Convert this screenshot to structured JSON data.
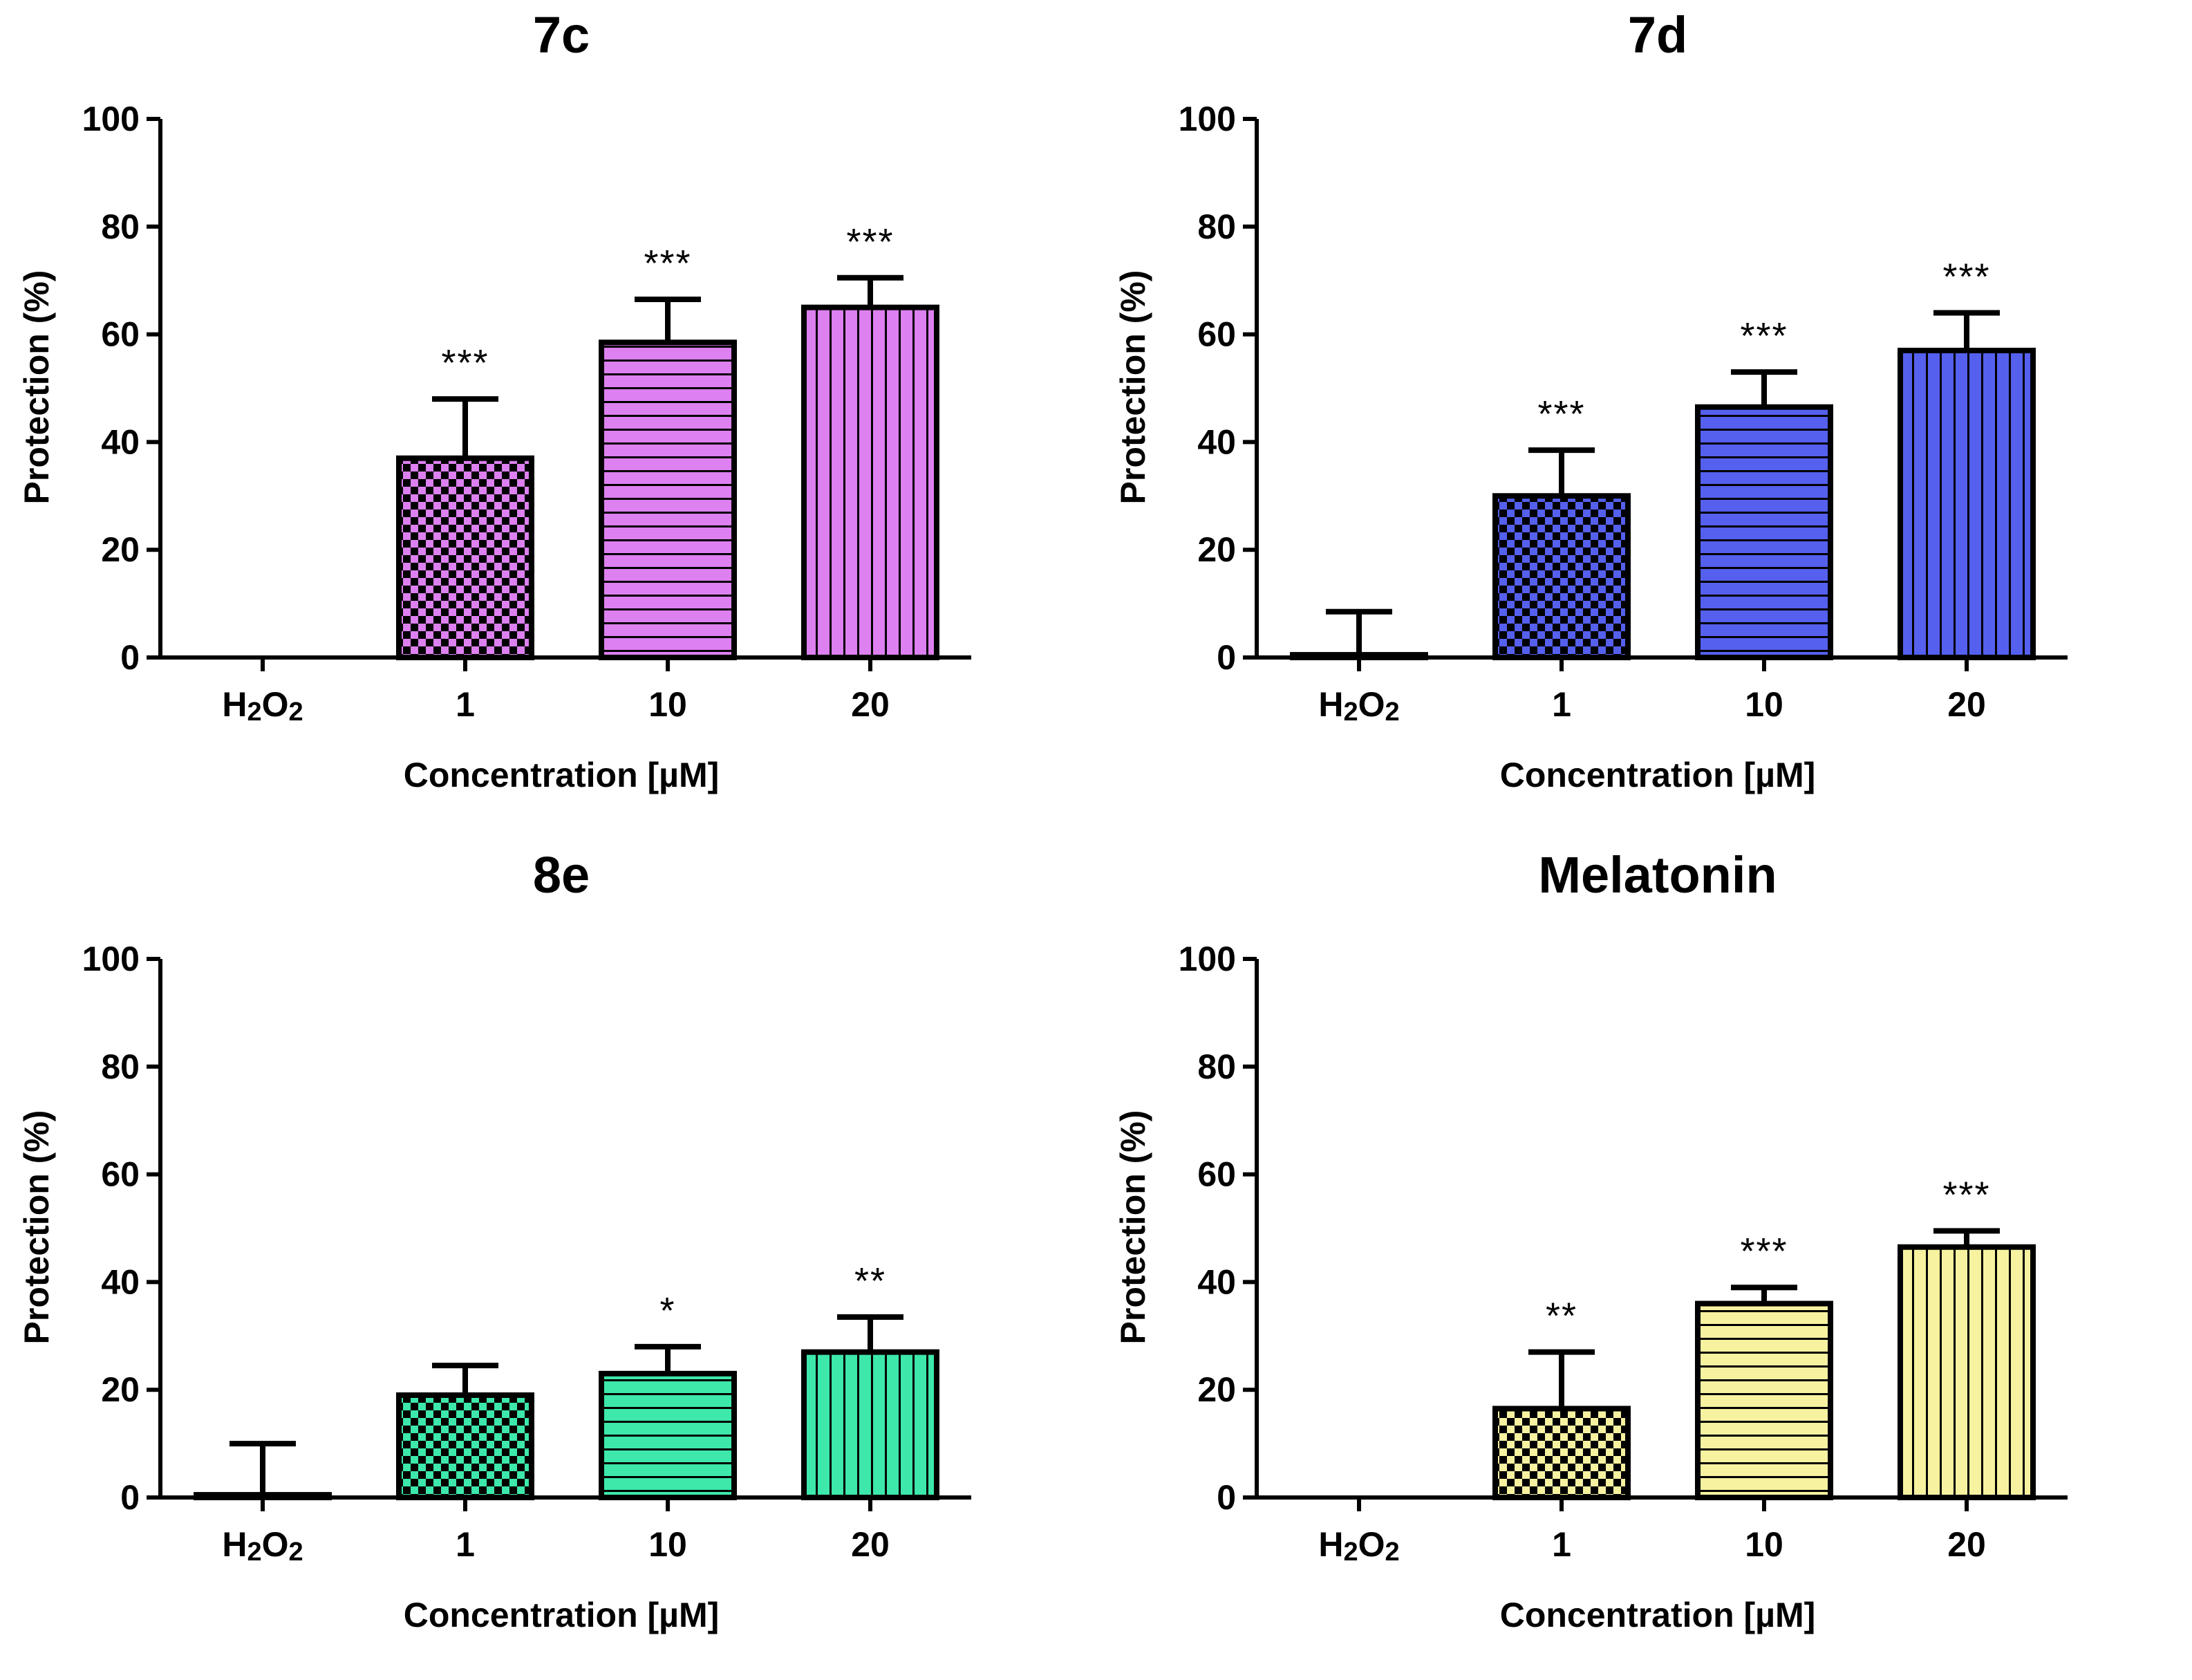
{
  "chart_data": [
    {
      "type": "bar",
      "title": "7c",
      "categories": [
        "H2O2",
        "1",
        "10",
        "20"
      ],
      "values": [
        0,
        37,
        58.5,
        65
      ],
      "errors": [
        0,
        11,
        8,
        5.5
      ],
      "significance": [
        "",
        "***",
        "***",
        "***"
      ],
      "patterns": [
        "none",
        "checker",
        "horizontal",
        "vertical"
      ],
      "color": "#dd80f0",
      "xlabel": "Concentration [µM]",
      "ylabel": "Protection (%)",
      "ylim": [
        0,
        100
      ],
      "yticks": [
        0,
        20,
        40,
        60,
        80,
        100
      ]
    },
    {
      "type": "bar",
      "title": "7d",
      "categories": [
        "H2O2",
        "1",
        "10",
        "20"
      ],
      "values": [
        0.5,
        30,
        46.5,
        57
      ],
      "errors": [
        8,
        8.5,
        6.5,
        7
      ],
      "significance": [
        "",
        "***",
        "***",
        "***"
      ],
      "patterns": [
        "solid",
        "checker",
        "horizontal",
        "vertical"
      ],
      "color": "#5560ee",
      "xlabel": "Concentration [µM]",
      "ylabel": "Protection (%)",
      "ylim": [
        0,
        100
      ],
      "yticks": [
        0,
        20,
        40,
        60,
        80,
        100
      ]
    },
    {
      "type": "bar",
      "title": "8e",
      "categories": [
        "H2O2",
        "1",
        "10",
        "20"
      ],
      "values": [
        0.5,
        19,
        23,
        27
      ],
      "errors": [
        9.5,
        5.5,
        5,
        6.5
      ],
      "significance": [
        "",
        "",
        "*",
        "**"
      ],
      "patterns": [
        "solid",
        "checker",
        "horizontal",
        "vertical"
      ],
      "color": "#3de8aa",
      "xlabel": "Concentration [µM]",
      "ylabel": "Protection (%)",
      "ylim": [
        0,
        100
      ],
      "yticks": [
        0,
        20,
        40,
        60,
        80,
        100
      ]
    },
    {
      "type": "bar",
      "title": "Melatonin",
      "categories": [
        "H2O2",
        "1",
        "10",
        "20"
      ],
      "values": [
        0,
        16.5,
        36,
        46.5
      ],
      "errors": [
        0,
        10.5,
        3,
        3
      ],
      "significance": [
        "",
        "**",
        "***",
        "***"
      ],
      "patterns": [
        "none",
        "checker",
        "horizontal",
        "vertical"
      ],
      "color": "#f7f2a0",
      "xlabel": "Concentration [µM]",
      "ylabel": "Protection (%)",
      "ylim": [
        0,
        100
      ],
      "yticks": [
        0,
        20,
        40,
        60,
        80,
        100
      ]
    }
  ]
}
